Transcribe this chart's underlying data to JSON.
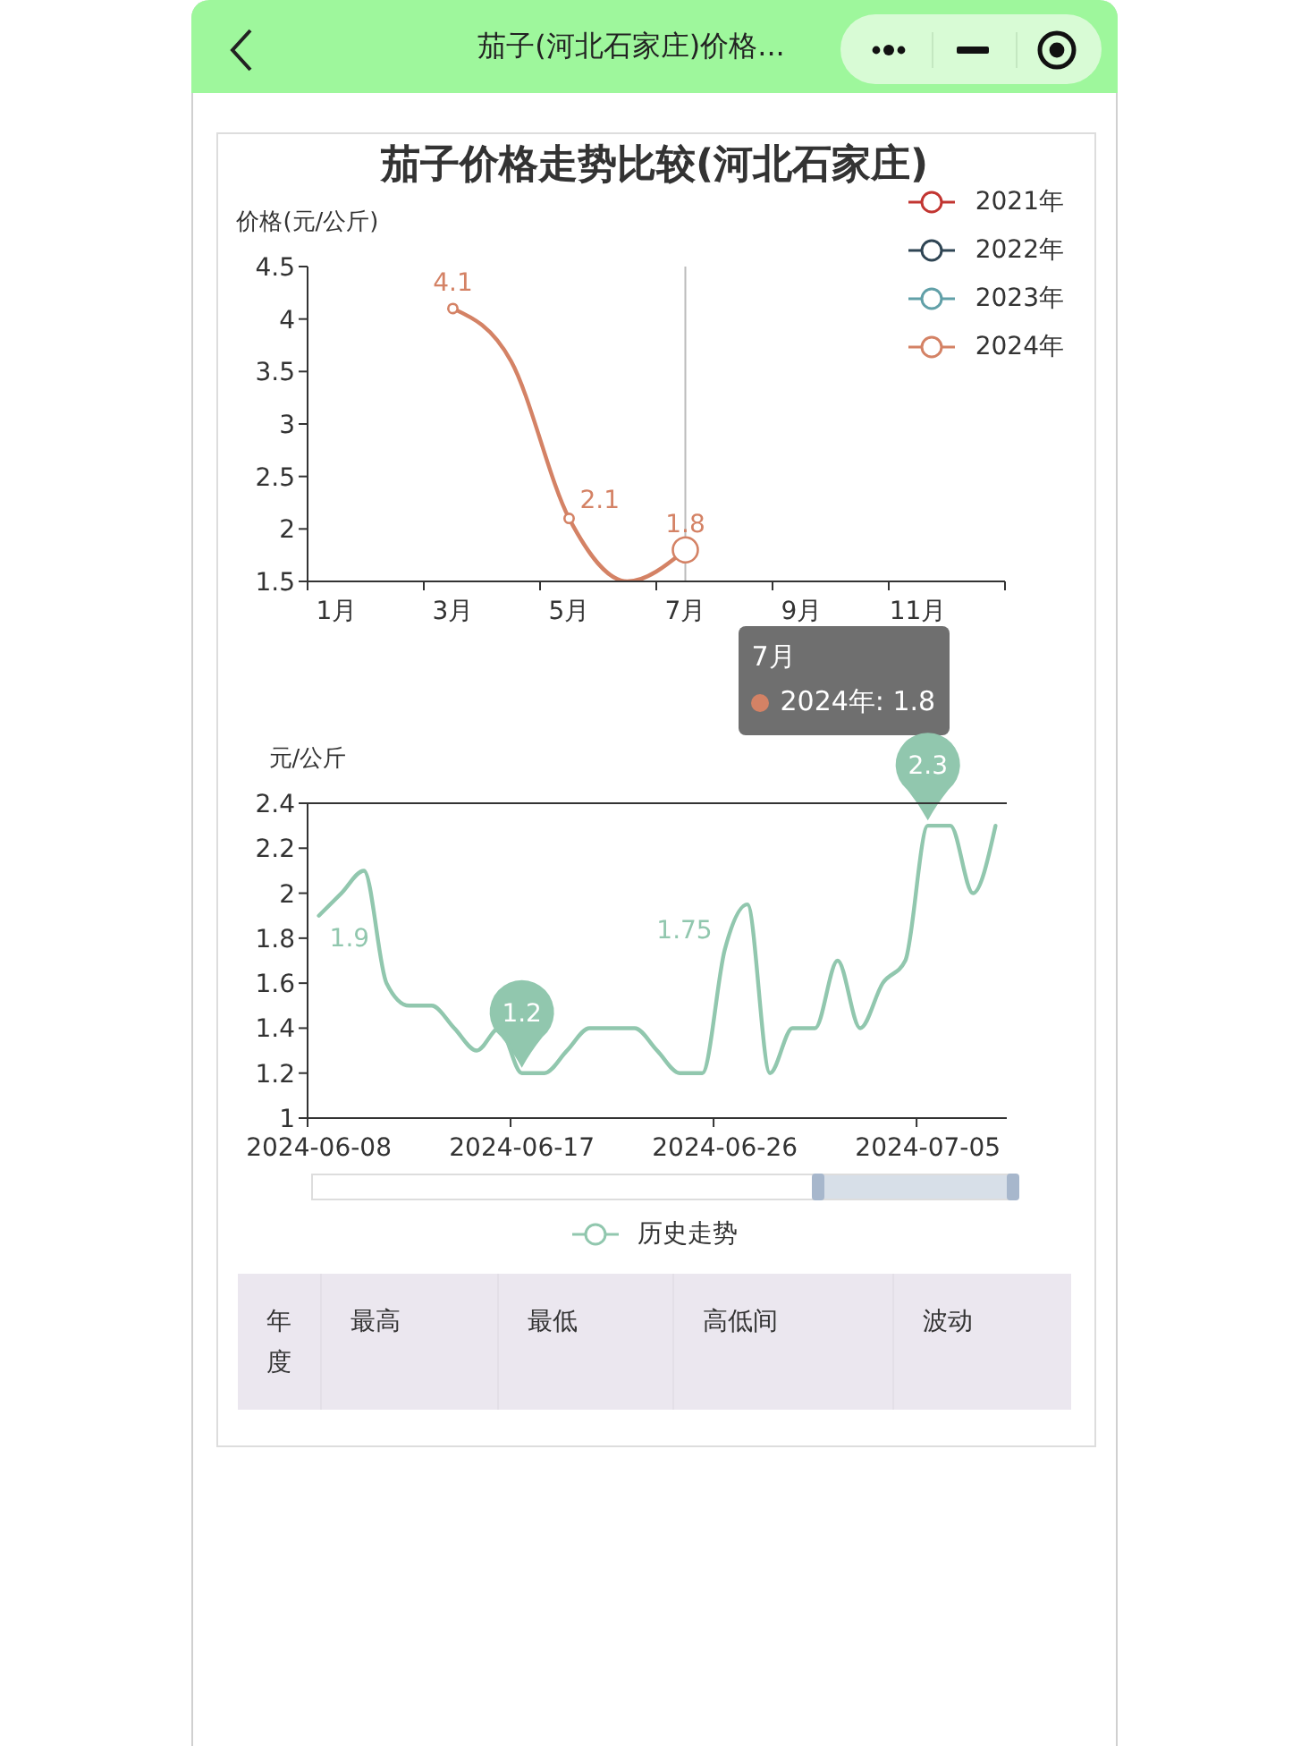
{
  "chart_data": [
    {
      "type": "other",
      "title": "茄子(河北石家庄)价格..."
    },
    {
      "type": "line",
      "title": "茄子价格走势比较(河北石家庄)",
      "ylabel": "价格(元/公斤)",
      "categories": [
        "1月",
        null,
        "3月",
        null,
        "5月",
        null,
        "7月",
        null,
        "9月",
        null,
        "11月",
        null
      ],
      "series": [
        {
          "name": "2021年",
          "color": "#c23531",
          "values": [
            null,
            null,
            null,
            null,
            null,
            null,
            null,
            null,
            null,
            null,
            null,
            null
          ]
        },
        {
          "name": "2022年",
          "color": "#2f4554",
          "values": [
            null,
            null,
            null,
            null,
            null,
            null,
            null,
            null,
            null,
            null,
            null,
            null
          ]
        },
        {
          "name": "2023年",
          "color": "#61a0a8",
          "values": [
            null,
            null,
            null,
            null,
            null,
            null,
            null,
            null,
            null,
            null,
            null,
            null
          ]
        },
        {
          "name": "2024年",
          "color": "#d48265",
          "values": [
            null,
            null,
            4.1,
            3.6,
            2.1,
            1.5,
            1.8,
            null,
            null,
            null,
            null,
            null
          ],
          "value_labels": [
            null,
            null,
            "4.1",
            null,
            "2.1",
            null,
            "1.8",
            null,
            null,
            null,
            null,
            null
          ]
        }
      ],
      "ylim": [
        1.5,
        4.5
      ],
      "yticks": [
        1.5,
        2,
        2.5,
        3,
        3.5,
        4,
        4.5
      ],
      "legend": "top right",
      "marker": "circle",
      "ref_lines": [
        {
          "axis": "x",
          "value": "7月",
          "color": "#bbbbbb"
        }
      ],
      "annotations": [
        "2024年: 1.8"
      ]
    },
    {
      "type": "line",
      "ylabel": "元/公斤",
      "categories": [
        "2024-06-08",
        null,
        null,
        null,
        null,
        null,
        null,
        null,
        null,
        "2024-06-17",
        null,
        null,
        null,
        null,
        null,
        null,
        null,
        null,
        "2024-06-26",
        null,
        null,
        null,
        null,
        null,
        null,
        null,
        null,
        "2024-07-05",
        null,
        null,
        null
      ],
      "series": [
        {
          "name": "历史走势",
          "color": "#91c7ae",
          "values": [
            1.9,
            2.0,
            2.1,
            1.6,
            1.5,
            1.5,
            1.4,
            1.3,
            1.4,
            1.2,
            1.2,
            1.3,
            1.4,
            1.4,
            1.4,
            1.3,
            1.2,
            1.2,
            1.75,
            1.95,
            1.2,
            1.4,
            1.4,
            1.7,
            1.4,
            1.6,
            1.7,
            2.3,
            2.3,
            2.0,
            2.3
          ],
          "value_labels": [
            "1.9",
            null,
            null,
            null,
            null,
            null,
            null,
            null,
            null,
            null,
            null,
            null,
            null,
            null,
            null,
            null,
            null,
            null,
            "1.75",
            null,
            null,
            null,
            null,
            null,
            null,
            null,
            null,
            null,
            null,
            null,
            null
          ]
        }
      ],
      "ylim": [
        1,
        2.4
      ],
      "yticks": [
        1,
        1.2,
        1.4,
        1.6,
        1.8,
        2,
        2.2,
        2.4
      ],
      "legend": "bottom",
      "ref_lines": [
        {
          "axis": "y",
          "value": 2.4,
          "color": "#333333"
        }
      ],
      "annotations": [
        {
          "text": "1.2",
          "x": "2024-06-17",
          "y": 1.2
        },
        {
          "text": "2.3",
          "x": "2024-07-05",
          "y": 2.3
        }
      ]
    },
    {
      "type": "other",
      "annotations": [
        "年度",
        "最高",
        "最低",
        "高低间",
        "波动"
      ]
    }
  ]
}
